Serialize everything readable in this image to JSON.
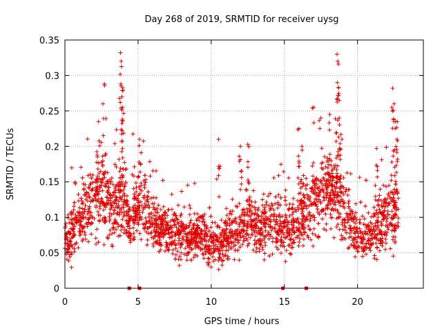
{
  "chart_data": {
    "type": "scatter",
    "title": "Day 268 of 2019, SRMTID for receiver uysg",
    "xlabel": "GPS time / hours",
    "ylabel": "SRMTID / TECUs",
    "xlim": [
      0,
      24.5
    ],
    "ylim": [
      0,
      0.35
    ],
    "x_ticks": [
      0,
      5,
      10,
      15,
      20
    ],
    "x_tick_labels": [
      "0",
      "5",
      "10",
      "15",
      "20"
    ],
    "y_ticks": [
      0,
      0.05,
      0.1,
      0.15,
      0.2,
      0.25,
      0.3,
      0.35
    ],
    "y_tick_labels": [
      "0",
      "0.05",
      "0.1",
      "0.15",
      "0.2",
      "0.25",
      "0.3",
      "0.35"
    ],
    "grid": true,
    "marker": "plus",
    "color": "#e00000",
    "envelope_x": [
      0,
      0.5,
      1,
      1.5,
      2,
      2.5,
      3,
      3.5,
      4,
      4.5,
      5,
      5.5,
      6,
      6.5,
      7,
      7.5,
      8,
      8.5,
      9,
      9.5,
      10,
      10.5,
      11,
      11.5,
      12,
      12.5,
      13,
      13.5,
      14,
      14.5,
      15,
      15.5,
      16,
      16.5,
      17,
      17.5,
      18,
      18.5,
      19,
      19.5,
      20,
      20.5,
      21,
      21.5,
      22,
      22.5,
      23
    ],
    "envelope_mean": [
      0.065,
      0.08,
      0.095,
      0.105,
      0.12,
      0.13,
      0.115,
      0.12,
      0.12,
      0.09,
      0.12,
      0.11,
      0.09,
      0.085,
      0.085,
      0.08,
      0.075,
      0.075,
      0.08,
      0.075,
      0.065,
      0.065,
      0.07,
      0.075,
      0.085,
      0.09,
      0.085,
      0.085,
      0.095,
      0.09,
      0.085,
      0.09,
      0.1,
      0.105,
      0.115,
      0.13,
      0.135,
      0.13,
      0.115,
      0.095,
      0.075,
      0.07,
      0.075,
      0.09,
      0.1,
      0.1,
      0.08
    ],
    "envelope_spread": [
      0.025,
      0.035,
      0.04,
      0.045,
      0.05,
      0.055,
      0.055,
      0.055,
      0.05,
      0.035,
      0.045,
      0.04,
      0.03,
      0.03,
      0.03,
      0.03,
      0.03,
      0.03,
      0.03,
      0.03,
      0.028,
      0.028,
      0.028,
      0.03,
      0.032,
      0.035,
      0.035,
      0.035,
      0.035,
      0.035,
      0.035,
      0.035,
      0.04,
      0.045,
      0.05,
      0.05,
      0.05,
      0.05,
      0.045,
      0.04,
      0.03,
      0.03,
      0.035,
      0.04,
      0.045,
      0.045,
      0.03
    ],
    "peaks": [
      {
        "x": 2.3,
        "y": 0.235
      },
      {
        "x": 2.6,
        "y": 0.26
      },
      {
        "x": 2.7,
        "y": 0.288
      },
      {
        "x": 3.8,
        "y": 0.332
      },
      {
        "x": 3.85,
        "y": 0.32
      },
      {
        "x": 3.9,
        "y": 0.27
      },
      {
        "x": 3.95,
        "y": 0.255
      },
      {
        "x": 5.1,
        "y": 0.21
      },
      {
        "x": 10.5,
        "y": 0.21
      },
      {
        "x": 12.0,
        "y": 0.2
      },
      {
        "x": 12.5,
        "y": 0.203
      },
      {
        "x": 16.0,
        "y": 0.225
      },
      {
        "x": 16.2,
        "y": 0.2
      },
      {
        "x": 17.0,
        "y": 0.255
      },
      {
        "x": 17.5,
        "y": 0.24
      },
      {
        "x": 18.1,
        "y": 0.245
      },
      {
        "x": 18.6,
        "y": 0.33
      },
      {
        "x": 18.65,
        "y": 0.32
      },
      {
        "x": 18.7,
        "y": 0.283
      },
      {
        "x": 18.75,
        "y": 0.265
      },
      {
        "x": 21.3,
        "y": 0.197
      },
      {
        "x": 22.4,
        "y": 0.282
      },
      {
        "x": 22.5,
        "y": 0.26
      },
      {
        "x": 22.6,
        "y": 0.235
      },
      {
        "x": 22.7,
        "y": 0.21
      }
    ],
    "axis_markers_x": [
      4.4,
      5.1,
      14.9,
      16.5
    ]
  }
}
